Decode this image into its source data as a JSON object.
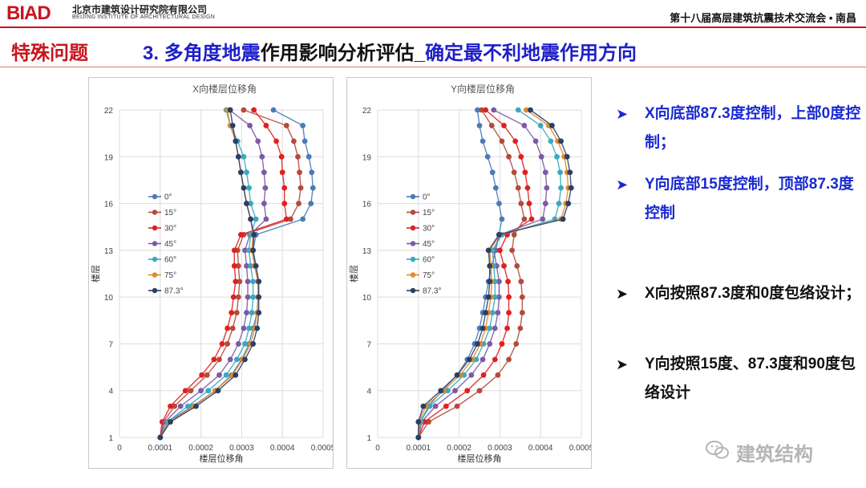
{
  "header": {
    "logo": "BIAD",
    "org_cn": "北京市建筑设计研究院有限公司",
    "org_en": "BEIJING INSTITUTE OF ARCHITECTURAL DESIGN",
    "conference": "第十八届高层建筑抗震技术交流会 • 南昌"
  },
  "section_title": "特殊问题",
  "heading": {
    "part1": "3. 多角度地震",
    "part2": "作用影响分析评估_",
    "part3": "确定最不利地震作用方向"
  },
  "colors": {
    "brand_red": "#c8151d",
    "heading_blue": "#1f1fc8",
    "bullet_blue": "#1a2ad0"
  },
  "bullets": [
    {
      "text": "X向底部87.3度控制，上部0度控制；",
      "color": "blue"
    },
    {
      "text": "Y向底部15度控制，顶部87.3度控制",
      "color": "blue"
    },
    {
      "text": "X向按照87.3度和0度包络设计；",
      "color": "dark"
    },
    {
      "text": "Y向按照15度、87.3度和90度包络设计",
      "color": "dark"
    }
  ],
  "watermark": "建筑结构",
  "chart_data": [
    {
      "type": "line",
      "title": "X向楼层位移角",
      "xlabel": "楼层位移角",
      "ylabel": "楼层",
      "xlim": [
        0,
        0.0005
      ],
      "ylim": [
        1,
        22
      ],
      "xticks": [
        "0",
        "0.0001",
        "0.0002",
        "0.0003",
        "0.0004",
        "0.0005"
      ],
      "yticks": [
        "1",
        "4",
        "7",
        "10",
        "13",
        "16",
        "19",
        "22"
      ],
      "grid": true,
      "legend_position": "left",
      "floors": [
        1,
        2,
        3,
        4,
        5,
        6,
        7,
        8,
        9,
        10,
        11,
        12,
        13,
        14,
        15,
        16,
        17,
        18,
        19,
        20,
        21,
        22
      ],
      "series": [
        {
          "name": "0°",
          "color": "#4a7bb7",
          "values": [
            0.0001,
            0.000118,
            0.00018,
            0.000235,
            0.000275,
            0.0003,
            0.000318,
            0.000328,
            0.000338,
            0.00034,
            0.00034,
            0.000332,
            0.000328,
            0.000335,
            0.00045,
            0.00047,
            0.000475,
            0.000472,
            0.000465,
            0.000455,
            0.00045,
            0.000378
          ]
        },
        {
          "name": "15°",
          "color": "#b44a3a",
          "values": [
            0.0001,
            0.000108,
            0.000135,
            0.000175,
            0.000215,
            0.000245,
            0.000265,
            0.000278,
            0.000288,
            0.000292,
            0.000295,
            0.000292,
            0.00029,
            0.000305,
            0.00042,
            0.00044,
            0.000445,
            0.000442,
            0.000438,
            0.000428,
            0.00041,
            0.000305
          ]
        },
        {
          "name": "30°",
          "color": "#e02020",
          "values": [
            0.0001,
            0.000105,
            0.000125,
            0.000162,
            0.000202,
            0.000232,
            0.000252,
            0.000265,
            0.000275,
            0.00028,
            0.000285,
            0.000282,
            0.000282,
            0.000298,
            0.00041,
            0.000405,
            0.000405,
            0.0004,
            0.000398,
            0.000385,
            0.00036,
            0.00033
          ]
        },
        {
          "name": "45°",
          "color": "#7b5aa6",
          "values": [
            0.0001,
            0.000112,
            0.00015,
            0.0002,
            0.000245,
            0.000272,
            0.000292,
            0.000305,
            0.000312,
            0.000315,
            0.000315,
            0.000312,
            0.000308,
            0.00032,
            0.00036,
            0.000355,
            0.000358,
            0.000355,
            0.00035,
            0.00034,
            0.00032,
            0.00027
          ]
        },
        {
          "name": "60°",
          "color": "#3aa8c0",
          "values": [
            0.0001,
            0.000118,
            0.000168,
            0.000218,
            0.000262,
            0.000288,
            0.000308,
            0.000318,
            0.000325,
            0.000328,
            0.000328,
            0.000322,
            0.000318,
            0.000322,
            0.000335,
            0.000322,
            0.000318,
            0.000312,
            0.000305,
            0.00029,
            0.000272,
            0.000262
          ]
        },
        {
          "name": "75°",
          "color": "#e08a2a",
          "values": [
            0.0001,
            0.000122,
            0.000182,
            0.000235,
            0.000278,
            0.000302,
            0.000322,
            0.000332,
            0.000338,
            0.00034,
            0.00034,
            0.000332,
            0.000325,
            0.000328,
            0.000322,
            0.000312,
            0.000305,
            0.000298,
            0.000292,
            0.000285,
            0.000272,
            0.000265
          ]
        },
        {
          "name": "87.3°",
          "color": "#2a3f66",
          "values": [
            0.0001,
            0.000125,
            0.000188,
            0.000242,
            0.000285,
            0.000308,
            0.000328,
            0.000338,
            0.000342,
            0.000342,
            0.000342,
            0.000335,
            0.000328,
            0.00033,
            0.000322,
            0.000312,
            0.000305,
            0.000298,
            0.000292,
            0.000285,
            0.000278,
            0.000272
          ]
        }
      ]
    },
    {
      "type": "line",
      "title": "Y向楼层位移角",
      "xlabel": "楼层位移角",
      "ylabel": "楼层",
      "xlim": [
        0,
        0.0005
      ],
      "ylim": [
        1,
        22
      ],
      "xticks": [
        "0",
        "0.0001",
        "0.0002",
        "0.0003",
        "0.0004",
        "0.0005"
      ],
      "yticks": [
        "1",
        "4",
        "7",
        "10",
        "13",
        "16",
        "19",
        "22"
      ],
      "grid": true,
      "legend_position": "left",
      "floors": [
        1,
        2,
        3,
        4,
        5,
        6,
        7,
        8,
        9,
        10,
        11,
        12,
        13,
        14,
        15,
        16,
        17,
        18,
        19,
        20,
        21,
        22
      ],
      "series": [
        {
          "name": "0°",
          "color": "#4a7bb7",
          "values": [
            0.0001,
            0.000105,
            0.000125,
            0.000158,
            0.000195,
            0.00022,
            0.000238,
            0.00025,
            0.000258,
            0.000265,
            0.000272,
            0.00028,
            0.00029,
            0.000298,
            0.000305,
            0.000298,
            0.00029,
            0.000282,
            0.00027,
            0.000258,
            0.00025,
            0.000245
          ]
        },
        {
          "name": "15°",
          "color": "#b44a3a",
          "values": [
            0.0001,
            0.000125,
            0.000195,
            0.00025,
            0.000295,
            0.000322,
            0.00034,
            0.00035,
            0.000355,
            0.000355,
            0.000352,
            0.000342,
            0.00033,
            0.000335,
            0.00036,
            0.000352,
            0.000345,
            0.000335,
            0.000322,
            0.000305,
            0.00028,
            0.000255
          ]
        },
        {
          "name": "30°",
          "color": "#e02020",
          "values": [
            0.0001,
            0.000115,
            0.000168,
            0.00022,
            0.00026,
            0.000288,
            0.000305,
            0.000318,
            0.000322,
            0.000322,
            0.00032,
            0.00031,
            0.0003,
            0.000318,
            0.000378,
            0.000372,
            0.000368,
            0.000362,
            0.000352,
            0.000338,
            0.00031,
            0.000265
          ]
        },
        {
          "name": "45°",
          "color": "#7b5aa6",
          "values": [
            0.0001,
            0.000108,
            0.000142,
            0.00019,
            0.00023,
            0.000258,
            0.000275,
            0.000288,
            0.000295,
            0.000298,
            0.000298,
            0.000292,
            0.000285,
            0.0003,
            0.000405,
            0.000412,
            0.000415,
            0.000412,
            0.000402,
            0.000388,
            0.00036,
            0.000285
          ]
        },
        {
          "name": "60°",
          "color": "#3aa8c0",
          "values": [
            0.0001,
            0.000105,
            0.000128,
            0.000172,
            0.000212,
            0.000242,
            0.00026,
            0.000275,
            0.000282,
            0.000288,
            0.000288,
            0.000285,
            0.000282,
            0.000305,
            0.000435,
            0.000445,
            0.00045,
            0.000448,
            0.00044,
            0.000425,
            0.0004,
            0.000345
          ]
        },
        {
          "name": "75°",
          "color": "#e08a2a",
          "values": [
            0.0001,
            0.000102,
            0.000118,
            0.000162,
            0.000202,
            0.000232,
            0.000252,
            0.000265,
            0.000272,
            0.000278,
            0.00028,
            0.000278,
            0.000275,
            0.0003,
            0.00045,
            0.000462,
            0.000468,
            0.000465,
            0.000458,
            0.000442,
            0.00042,
            0.000365
          ]
        },
        {
          "name": "87.3°",
          "color": "#2a3f66",
          "values": [
            0.0001,
            0.0001,
            0.000112,
            0.000155,
            0.000195,
            0.000225,
            0.000245,
            0.000258,
            0.000265,
            0.000272,
            0.000275,
            0.000275,
            0.000272,
            0.000298,
            0.000455,
            0.000468,
            0.000475,
            0.000472,
            0.000465,
            0.00045,
            0.000428,
            0.000375
          ]
        }
      ]
    }
  ]
}
